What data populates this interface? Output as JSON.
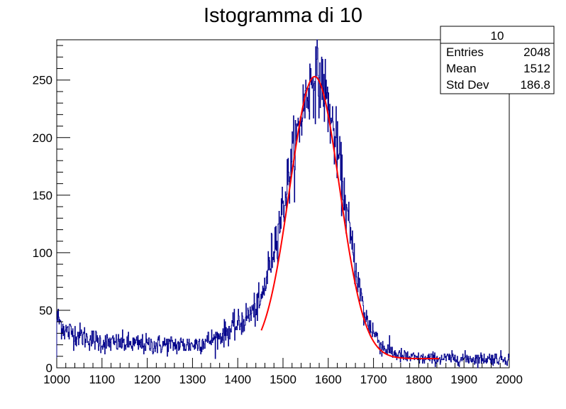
{
  "chart_data": {
    "type": "histogram",
    "title": "Istogramma di 10",
    "xlim": [
      1000,
      2000
    ],
    "ylim": [
      0,
      285
    ],
    "x_ticks": [
      1000,
      1100,
      1200,
      1300,
      1400,
      1500,
      1600,
      1700,
      1800,
      1900,
      2000
    ],
    "y_ticks": [
      0,
      50,
      100,
      150,
      200,
      250
    ],
    "n_bins": 1000,
    "histogram_color": "#00008b",
    "histogram_profile": {
      "description_points_x": [
        1000,
        1020,
        1100,
        1200,
        1300,
        1350,
        1400,
        1450,
        1500,
        1530,
        1550,
        1570,
        1590,
        1620,
        1650,
        1680,
        1720,
        1760,
        1800,
        1900,
        2000
      ],
      "description_points_y": [
        44,
        32,
        22,
        20,
        20,
        25,
        37,
        55,
        140,
        200,
        235,
        255,
        245,
        190,
        110,
        45,
        18,
        10,
        8,
        8,
        8
      ]
    },
    "fit": {
      "color": "#ff0000",
      "x_range": [
        1452,
        1845
      ],
      "gaussian": {
        "amplitude": 245,
        "mean": 1570,
        "sigma": 55
      },
      "background": {
        "a": 8,
        "b": 60,
        "c": 1700,
        "d": 60
      }
    },
    "stats_box": {
      "name": "10",
      "rows": [
        {
          "label": "Entries",
          "value": "2048"
        },
        {
          "label": "Mean",
          "value": "1512"
        },
        {
          "label": "Std Dev",
          "value": "186.8"
        }
      ]
    }
  }
}
